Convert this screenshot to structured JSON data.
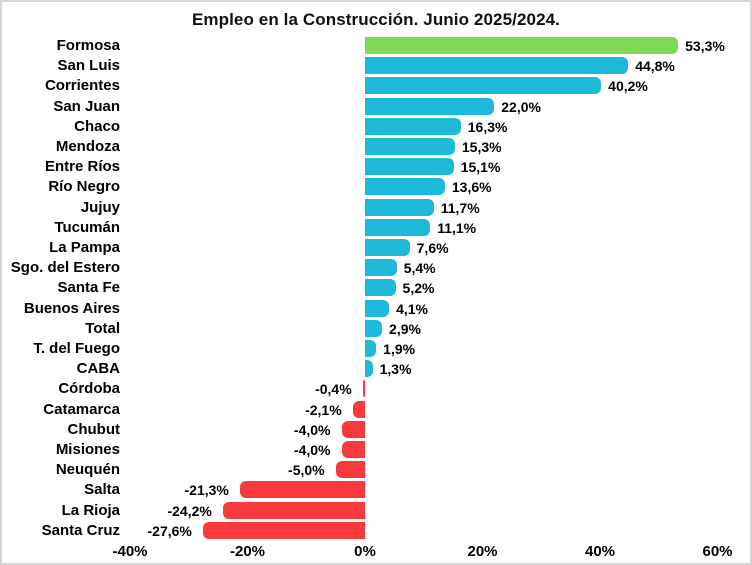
{
  "chart_data": {
    "type": "bar",
    "orientation": "horizontal",
    "title": "Empleo en la Construcción. Junio 2025/2024.",
    "categories": [
      "Formosa",
      "San Luis",
      "Corrientes",
      "San Juan",
      "Chaco",
      "Mendoza",
      "Entre Ríos",
      "Río Negro",
      "Jujuy",
      "Tucumán",
      "La Pampa",
      "Sgo. del Estero",
      "Santa Fe",
      "Buenos Aires",
      "Total",
      "T. del Fuego",
      "CABA",
      "Córdoba",
      "Catamarca",
      "Chubut",
      "Misiones",
      "Neuquén",
      "Salta",
      "La Rioja",
      "Santa Cruz"
    ],
    "values": [
      53.3,
      44.8,
      40.2,
      22.0,
      16.3,
      15.3,
      15.1,
      13.6,
      11.7,
      11.1,
      7.6,
      5.4,
      5.2,
      4.1,
      2.9,
      1.9,
      1.3,
      -0.4,
      -2.1,
      -4.0,
      -4.0,
      -5.0,
      -21.3,
      -24.2,
      -27.6
    ],
    "value_labels": [
      "53,3%",
      "44,8%",
      "40,2%",
      "22,0%",
      "16,3%",
      "15,3%",
      "15,1%",
      "13,6%",
      "11,7%",
      "11,1%",
      "7,6%",
      "5,4%",
      "5,2%",
      "4,1%",
      "2,9%",
      "1,9%",
      "1,3%",
      "-0,4%",
      "-2,1%",
      "-4,0%",
      "-4,0%",
      "-5,0%",
      "-21,3%",
      "-24,2%",
      "-27,6%"
    ],
    "x_ticks": [
      {
        "value": -40,
        "label": "-40%"
      },
      {
        "value": -20,
        "label": "-20%"
      },
      {
        "value": 0,
        "label": "0%"
      },
      {
        "value": 20,
        "label": "20%"
      },
      {
        "value": 40,
        "label": "40%"
      },
      {
        "value": 60,
        "label": "60%"
      }
    ],
    "xlim": [
      -40,
      60
    ],
    "xlabel": "",
    "ylabel": "",
    "grid": false,
    "legend": null,
    "highlight_index": 0,
    "colors": {
      "highlight": "#7ED957",
      "positive": "#1EB8D9",
      "negative": "#F93A3C"
    }
  }
}
